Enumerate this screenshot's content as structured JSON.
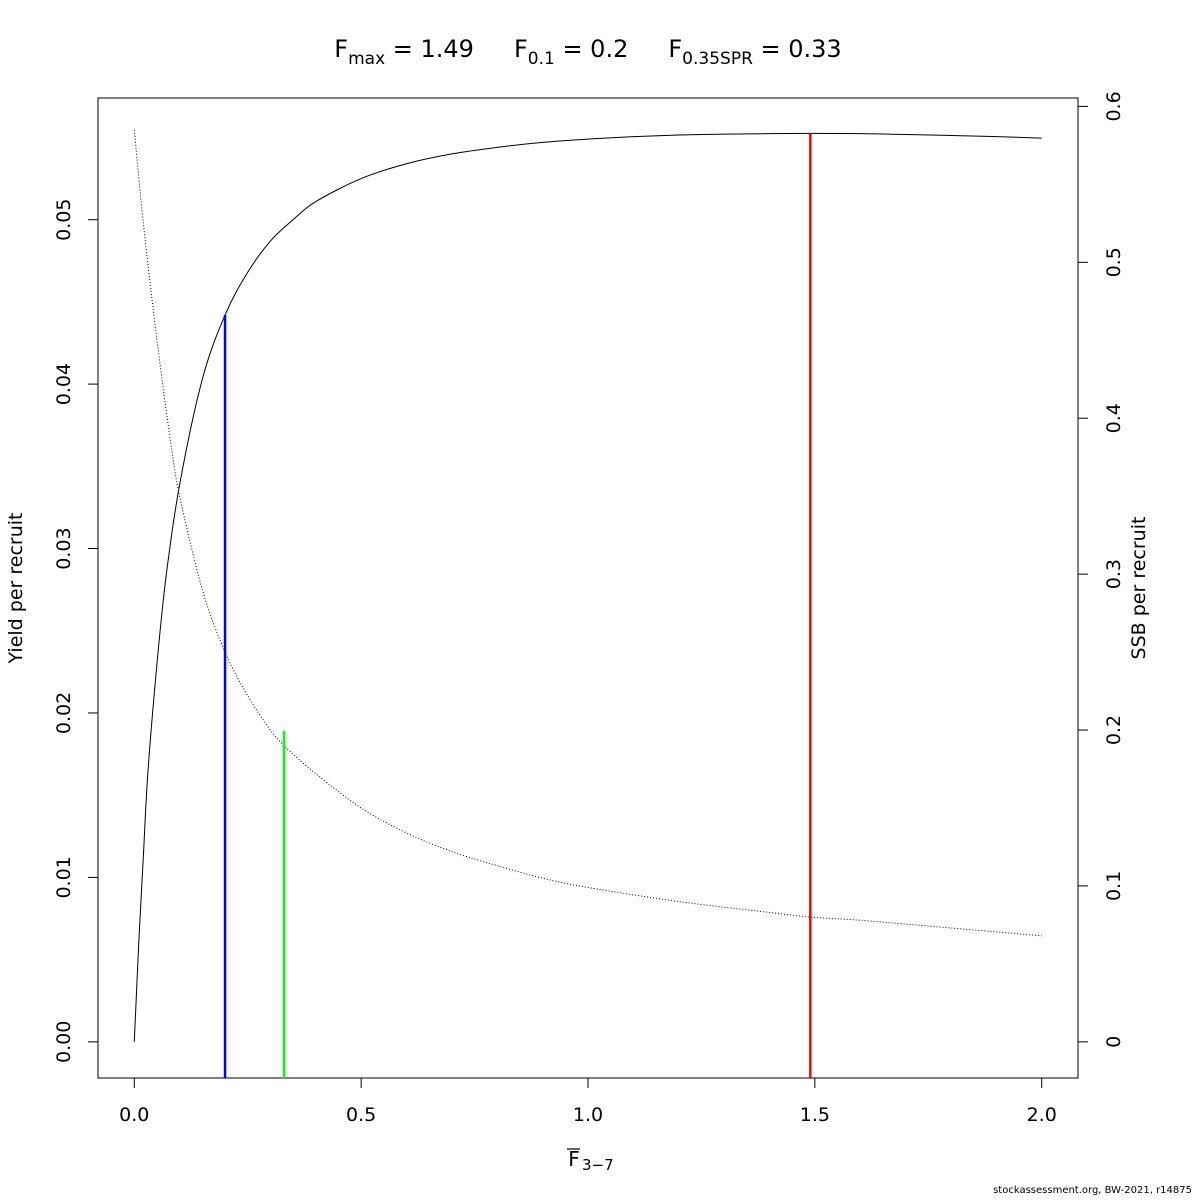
{
  "chart_data": {
    "type": "line",
    "title_parts": [
      {
        "base": "F",
        "sub": "max",
        "eq": " = 1.49"
      },
      {
        "base": "F",
        "sub": "0.1",
        "eq": " = 0.2"
      },
      {
        "base": "F",
        "sub": "0.35SPR",
        "eq": " = 0.33"
      }
    ],
    "xlabel": {
      "base": "F",
      "sub": "3−7",
      "overbar": true
    },
    "ylabel_left": "Yield per recruit",
    "ylabel_right": "SSB per recruit",
    "xlim": [
      -0.08,
      2.08
    ],
    "ylim_left": [
      -0.0022,
      0.0574
    ],
    "ylim_right": [
      -0.0232,
      0.6054
    ],
    "x_ticks": [
      0.0,
      0.5,
      1.0,
      1.5,
      2.0
    ],
    "x_tick_labels": [
      "0.0",
      "0.5",
      "1.0",
      "1.5",
      "2.0"
    ],
    "y_left_ticks": [
      0.0,
      0.01,
      0.02,
      0.03,
      0.04,
      0.05
    ],
    "y_left_tick_labels": [
      "0.00",
      "0.01",
      "0.02",
      "0.03",
      "0.04",
      "0.05"
    ],
    "y_right_ticks": [
      0,
      0.1,
      0.2,
      0.3,
      0.4,
      0.5,
      0.6
    ],
    "y_right_tick_labels": [
      "0",
      "0.1",
      "0.2",
      "0.3",
      "0.4",
      "0.5",
      "0.6"
    ],
    "series": [
      {
        "axis": "left",
        "style": "solid",
        "color": "#000000",
        "x": [
          0,
          0.01,
          0.02,
          0.03,
          0.05,
          0.07,
          0.1,
          0.15,
          0.2,
          0.25,
          0.3,
          0.35,
          0.4,
          0.5,
          0.6,
          0.7,
          0.8,
          0.9,
          1.0,
          1.1,
          1.2,
          1.3,
          1.4,
          1.49,
          1.6,
          1.7,
          1.8,
          1.9,
          2.0
        ],
        "y": [
          0,
          0.0061,
          0.0113,
          0.0164,
          0.023,
          0.0283,
          0.0339,
          0.0403,
          0.0442,
          0.0468,
          0.0487,
          0.05,
          0.0511,
          0.0525,
          0.0534,
          0.054,
          0.0544,
          0.0547,
          0.0549,
          0.05505,
          0.05515,
          0.0552,
          0.05523,
          0.05525,
          0.05523,
          0.05518,
          0.05512,
          0.05505,
          0.05496
        ]
      },
      {
        "axis": "right",
        "style": "dotted",
        "color": "#000000",
        "x": [
          0,
          0.02,
          0.05,
          0.08,
          0.1,
          0.15,
          0.2,
          0.25,
          0.3,
          0.33,
          0.4,
          0.5,
          0.6,
          0.7,
          0.8,
          0.9,
          1.0,
          1.2,
          1.4,
          1.49,
          1.6,
          1.8,
          2.0
        ],
        "y": [
          0.585,
          0.525,
          0.45,
          0.385,
          0.35,
          0.29,
          0.25,
          0.222,
          0.2,
          0.19,
          0.172,
          0.15,
          0.134,
          0.122,
          0.113,
          0.105,
          0.099,
          0.09,
          0.083,
          0.08,
          0.078,
          0.073,
          0.068
        ]
      }
    ],
    "reference_lines": [
      {
        "name": "F0.1",
        "x": 0.2,
        "y_top": 0.0442,
        "color": "#0000ff"
      },
      {
        "name": "F0.35SPR",
        "x": 0.33,
        "y_top": 0.0189,
        "color": "#00ff00"
      },
      {
        "name": "Fmax",
        "x": 1.49,
        "y_top": 0.05525,
        "color": "#ff0000"
      }
    ]
  },
  "footer": "stockassessment.org, BW-2021, r14875"
}
